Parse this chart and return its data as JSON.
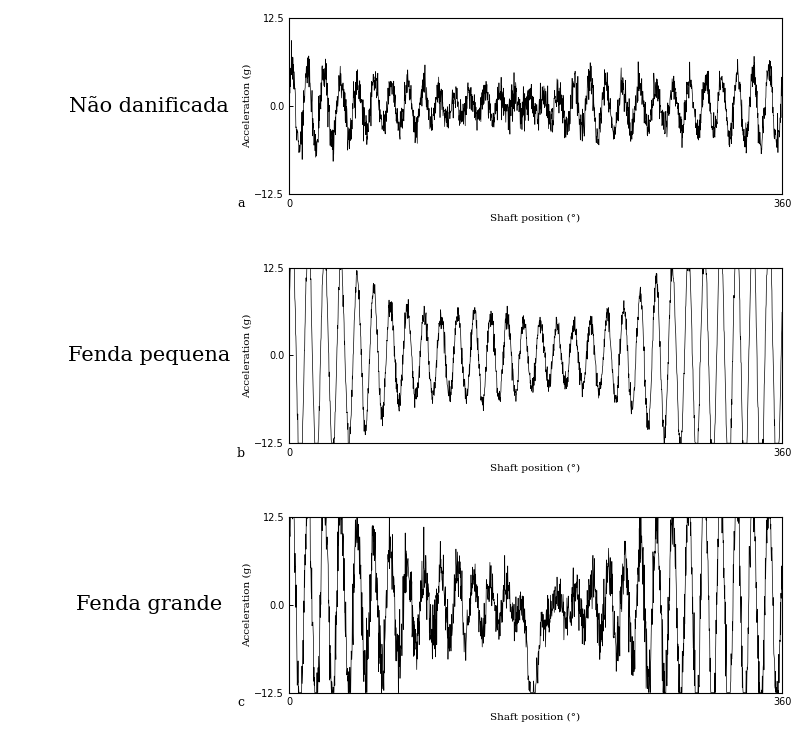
{
  "labels_left": [
    "Não danificada",
    "Fenda pequena",
    "Fenda grande"
  ],
  "subplot_labels": [
    "a",
    "b",
    "c"
  ],
  "ylabel": "Acceleration (g)",
  "xlabel": "Shaft position (°)",
  "ylim": [
    -12.5,
    12.5
  ],
  "yticks": [
    -12.5,
    0,
    12.5
  ],
  "xlim": [
    0,
    360
  ],
  "xticks": [
    0,
    360
  ],
  "line_color": "#000000",
  "bg_color": "#ffffff",
  "label_fontsize": 15,
  "axis_fontsize": 7.5,
  "tick_fontsize": 7,
  "subplot_label_fontsize": 9,
  "n_points": 1800,
  "signal_a_base_freq": 30,
  "signal_a_amp": 2.5,
  "signal_a_noise": 1.2,
  "signal_b_base_freq": 30,
  "signal_b_amp": 9.0,
  "signal_b_noise": 0.8,
  "signal_c_base_freq": 30,
  "signal_c_amp": 7.0,
  "signal_c_noise": 2.0
}
